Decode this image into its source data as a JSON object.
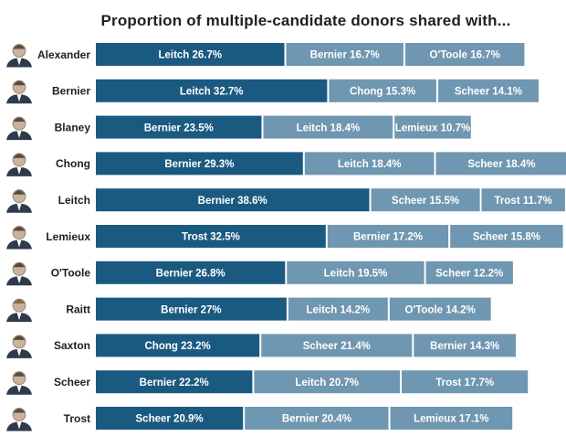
{
  "title": "Proportion of multiple-candidate donors shared with...",
  "colors": {
    "first_segment": "#1b5a80",
    "other_segments": "#6f97b1",
    "label_text": "#ffffff",
    "name_text": "#1f1f1f"
  },
  "chart_data": {
    "type": "bar",
    "orientation": "horizontal",
    "stacked": true,
    "unit": "%",
    "categories": [
      "Alexander",
      "Bernier",
      "Blaney",
      "Chong",
      "Leitch",
      "Lemieux",
      "O'Toole",
      "Raitt",
      "Saxton",
      "Scheer",
      "Trost"
    ],
    "rows": [
      {
        "candidate": "Alexander",
        "segments": [
          {
            "name": "Leitch",
            "value": 26.7,
            "label": "Leitch 26.7%"
          },
          {
            "name": "Bernier",
            "value": 16.7,
            "label": "Bernier 16.7%"
          },
          {
            "name": "O'Toole",
            "value": 16.7,
            "label": "O'Toole 16.7%"
          }
        ]
      },
      {
        "candidate": "Bernier",
        "segments": [
          {
            "name": "Leitch",
            "value": 32.7,
            "label": "Leitch 32.7%"
          },
          {
            "name": "Chong",
            "value": 15.3,
            "label": "Chong 15.3%"
          },
          {
            "name": "Scheer",
            "value": 14.1,
            "label": "Scheer 14.1%"
          }
        ]
      },
      {
        "candidate": "Blaney",
        "segments": [
          {
            "name": "Bernier",
            "value": 23.5,
            "label": "Bernier 23.5%"
          },
          {
            "name": "Leitch",
            "value": 18.4,
            "label": "Leitch 18.4%"
          },
          {
            "name": "Lemieux",
            "value": 10.7,
            "label": "Lemieux 10.7%"
          }
        ]
      },
      {
        "candidate": "Chong",
        "segments": [
          {
            "name": "Bernier",
            "value": 29.3,
            "label": "Bernier 29.3%"
          },
          {
            "name": "Leitch",
            "value": 18.4,
            "label": "Leitch 18.4%"
          },
          {
            "name": "Scheer",
            "value": 18.4,
            "label": "Scheer 18.4%"
          }
        ]
      },
      {
        "candidate": "Leitch",
        "segments": [
          {
            "name": "Bernier",
            "value": 38.6,
            "label": "Bernier 38.6%"
          },
          {
            "name": "Scheer",
            "value": 15.5,
            "label": "Scheer 15.5%"
          },
          {
            "name": "Trost",
            "value": 11.7,
            "label": "Trost 11.7%"
          }
        ]
      },
      {
        "candidate": "Lemieux",
        "segments": [
          {
            "name": "Trost",
            "value": 32.5,
            "label": "Trost 32.5%"
          },
          {
            "name": "Bernier",
            "value": 17.2,
            "label": "Bernier 17.2%"
          },
          {
            "name": "Scheer",
            "value": 15.8,
            "label": "Scheer 15.8%"
          }
        ]
      },
      {
        "candidate": "O'Toole",
        "segments": [
          {
            "name": "Bernier",
            "value": 26.8,
            "label": "Bernier 26.8%"
          },
          {
            "name": "Leitch",
            "value": 19.5,
            "label": "Leitch 19.5%"
          },
          {
            "name": "Scheer",
            "value": 12.2,
            "label": "Scheer 12.2%"
          }
        ]
      },
      {
        "candidate": "Raitt",
        "segments": [
          {
            "name": "Bernier",
            "value": 27,
            "label": "Bernier 27%"
          },
          {
            "name": "Leitch",
            "value": 14.2,
            "label": "Leitch 14.2%"
          },
          {
            "name": "O'Toole",
            "value": 14.2,
            "label": "O'Toole 14.2%"
          }
        ]
      },
      {
        "candidate": "Saxton",
        "segments": [
          {
            "name": "Chong",
            "value": 23.2,
            "label": "Chong 23.2%"
          },
          {
            "name": "Scheer",
            "value": 21.4,
            "label": "Scheer 21.4%"
          },
          {
            "name": "Bernier",
            "value": 14.3,
            "label": "Bernier 14.3%"
          }
        ]
      },
      {
        "candidate": "Scheer",
        "segments": [
          {
            "name": "Bernier",
            "value": 22.2,
            "label": "Bernier 22.2%"
          },
          {
            "name": "Leitch",
            "value": 20.7,
            "label": "Leitch 20.7%"
          },
          {
            "name": "Trost",
            "value": 17.7,
            "label": "Trost 17.7%"
          }
        ]
      },
      {
        "candidate": "Trost",
        "segments": [
          {
            "name": "Scheer",
            "value": 20.9,
            "label": "Scheer 20.9%"
          },
          {
            "name": "Bernier",
            "value": 20.4,
            "label": "Bernier 20.4%"
          },
          {
            "name": "Lemieux",
            "value": 17.1,
            "label": "Lemieux 17.1%"
          }
        ]
      }
    ],
    "portraits": "candidate-headshot-icon"
  }
}
